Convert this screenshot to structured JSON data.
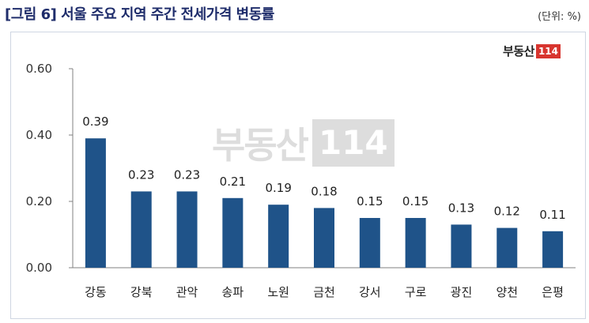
{
  "title": "[그림 6] 서울 주요 지역 주간 전세가격 변동률",
  "unit": "(단위: %)",
  "logo": {
    "text": "부동산",
    "box": "114"
  },
  "watermark": {
    "text": "부동산",
    "box": "114"
  },
  "colors": {
    "bar": "#1f5389",
    "axis": "#808080",
    "title": "#1f2d6b",
    "logo_red": "#d8352f"
  },
  "chart_data": {
    "type": "bar",
    "categories": [
      "강동",
      "강북",
      "관악",
      "송파",
      "노원",
      "금천",
      "강서",
      "구로",
      "광진",
      "양천",
      "은평"
    ],
    "values": [
      0.39,
      0.23,
      0.23,
      0.21,
      0.19,
      0.18,
      0.15,
      0.15,
      0.13,
      0.12,
      0.11
    ],
    "value_labels": [
      "0.39",
      "0.23",
      "0.23",
      "0.21",
      "0.19",
      "0.18",
      "0.15",
      "0.15",
      "0.13",
      "0.12",
      "0.11"
    ],
    "yticks": [
      "0.00",
      "0.20",
      "0.40",
      "0.60"
    ],
    "ylim": [
      0,
      0.6
    ],
    "title": "",
    "xlabel": "",
    "ylabel": "",
    "grid": false,
    "legend": false
  }
}
